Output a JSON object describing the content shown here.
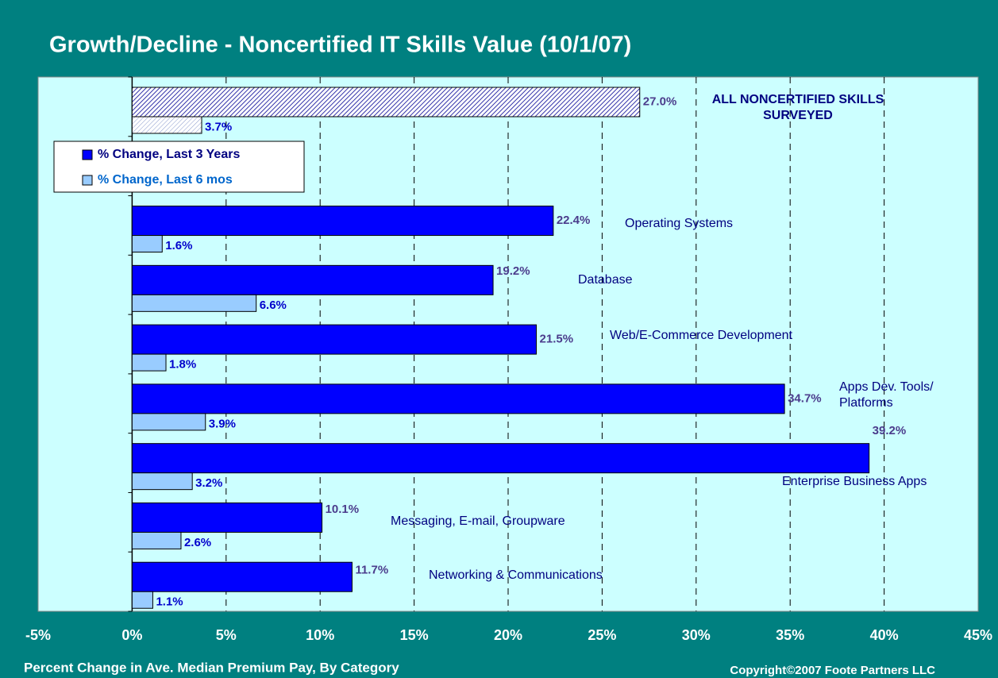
{
  "chart_data": {
    "type": "hbar",
    "title": "Growth/Decline - Noncertified IT Skills Value (10/1/07)",
    "x_label": "Percent Change in Ave. Median Premium Pay, By Category",
    "footnote": "Copyright©2007 Foote Partners LLC",
    "categories": [
      "ALL NONCERTIFIED SKILLS SURVEYED",
      "Operating Systems",
      "Database",
      "Web/E-Commerce Development",
      "Apps Dev. Tools/ Platforms",
      "Enterprise Business Apps",
      "Messaging, E-mail, Groupware",
      "Networking & Communications"
    ],
    "series": [
      {
        "name": "% Change, Last 3 Years",
        "color": "#0000ff",
        "values": [
          27.0,
          22.4,
          19.2,
          21.5,
          34.7,
          39.2,
          10.1,
          11.7
        ],
        "value_labels": [
          "27.0%",
          "22.4%",
          "19.2%",
          "21.5%",
          "34.7%",
          "39.2%",
          "10.1%",
          "11.7%"
        ]
      },
      {
        "name": "% Change, Last 6 mos",
        "color": "#99ccff",
        "values": [
          3.7,
          1.6,
          6.6,
          1.8,
          3.9,
          3.2,
          2.6,
          1.1
        ],
        "value_labels": [
          "3.7%",
          "1.6%",
          "6.6%",
          "1.8%",
          "3.9%",
          "3.2%",
          "2.6%",
          "1.1%"
        ]
      }
    ],
    "xlim": [
      -5,
      45
    ],
    "xticks": [
      {
        "value": -5,
        "label": "-5%"
      },
      {
        "value": 0,
        "label": "0%"
      },
      {
        "value": 5,
        "label": "5%"
      },
      {
        "value": 10,
        "label": "10%"
      },
      {
        "value": 15,
        "label": "15%"
      },
      {
        "value": 20,
        "label": "20%"
      },
      {
        "value": 25,
        "label": "25%"
      },
      {
        "value": 30,
        "label": "30%"
      },
      {
        "value": 35,
        "label": "35%"
      },
      {
        "value": 40,
        "label": "40%"
      },
      {
        "value": 45,
        "label": "45%"
      }
    ],
    "grid": true,
    "legend": "upper left"
  }
}
